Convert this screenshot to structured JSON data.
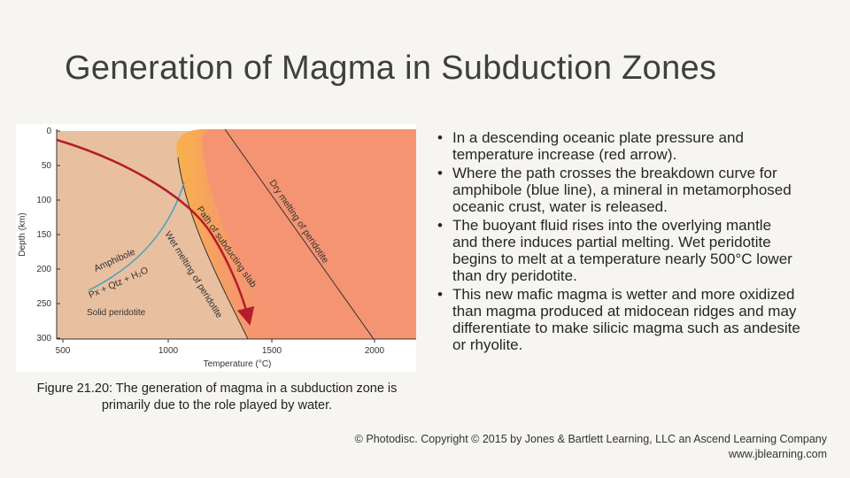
{
  "slide": {
    "title": "Generation of Magma in Subduction Zones",
    "caption": "Figure 21.20: The generation of magma in a subduction zone is primarily due to the role played by water.",
    "bullets": [
      "In a descending oceanic plate pressure and temperature increase (red arrow).",
      " Where the path crosses the breakdown curve for amphibole (blue line), a mineral in metamorphosed oceanic crust, water is released.",
      "The buoyant fluid rises into the overlying mantle and there induces partial melting. Wet peridotite begins to melt at a temperature nearly 500°C lower than dry peridotite.",
      "This new mafic magma is wetter and more oxidized than magma produced at midocean ridges and may differentiate to make silicic magma such as andesite or rhyolite."
    ],
    "bullet_symbol": "•",
    "credit_line1": "© Photodisc. Copyright © 2015 by Jones & Bartlett Learning, LLC an Ascend Learning Company",
    "credit_line2": "www.jblearning.com"
  },
  "diagram": {
    "xlabel": "Temperature (°C)",
    "ylabel": "Depth (km)",
    "x_ticks": [
      "500",
      "1000",
      "1500",
      "2000"
    ],
    "y_ticks": [
      "0",
      "50",
      "100",
      "150",
      "200",
      "250",
      "300"
    ],
    "labels": {
      "dry_melting": "Dry melting of peridotite",
      "slab_path": "Path of subducting slab",
      "wet_melting": "Wet melting of peridotite",
      "amphibole": "Amphibole",
      "reaction": "Px + Qtz + H₂O",
      "solid": "Solid peridotite"
    },
    "colors": {
      "solid_region": "#e8c0a0",
      "melt_region": "#f49472",
      "melt_zone_gradient": "#f9b24a",
      "amphibole_curve": "#4a9fc4",
      "slab_arrow": "#b51c2a",
      "lines": "#333333"
    }
  }
}
